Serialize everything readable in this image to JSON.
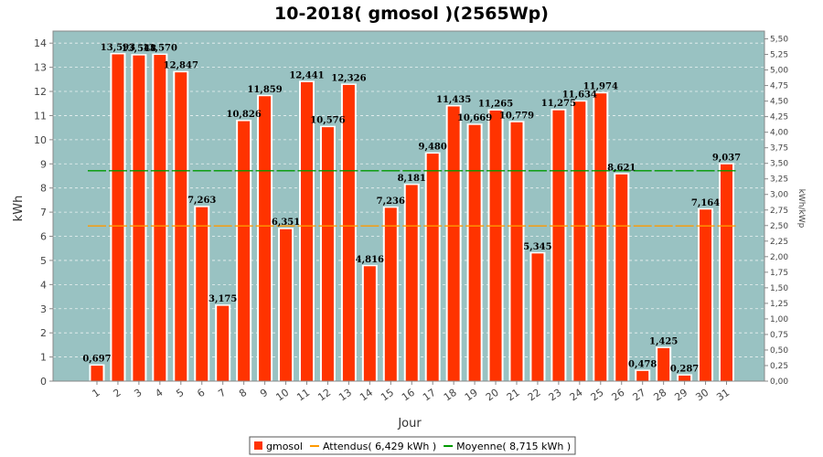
{
  "chart_data": {
    "type": "bar",
    "title": "10-2018( gmosol )(2565Wp)",
    "xlabel": "Jour",
    "ylabel": "kWh",
    "y2label": "kWh/kWp",
    "ylim": [
      0,
      14.5
    ],
    "y2lim": [
      0,
      5.625
    ],
    "yticks": [
      0,
      1,
      2,
      3,
      4,
      5,
      6,
      7,
      8,
      9,
      10,
      11,
      12,
      13,
      14
    ],
    "y2ticks": [
      "0,00",
      "0,25",
      "0,50",
      "0,75",
      "1,00",
      "1,25",
      "1,50",
      "1,75",
      "2,00",
      "2,25",
      "2,50",
      "2,75",
      "3,00",
      "3,25",
      "3,50",
      "3,75",
      "4,00",
      "4,25",
      "4,50",
      "4,75",
      "5,00",
      "5,25",
      "5,50"
    ],
    "categories": [
      "1",
      "2",
      "3",
      "4",
      "5",
      "6",
      "7",
      "8",
      "9",
      "10",
      "11",
      "12",
      "13",
      "14",
      "15",
      "16",
      "17",
      "18",
      "19",
      "20",
      "21",
      "22",
      "23",
      "24",
      "25",
      "26",
      "27",
      "28",
      "29",
      "30",
      "31"
    ],
    "values": [
      0.697,
      13.593,
      13.548,
      13.57,
      12.847,
      7.263,
      3.175,
      10.826,
      11.859,
      6.351,
      12.441,
      10.576,
      12.326,
      4.816,
      7.236,
      8.181,
      9.48,
      11.435,
      10.669,
      11.265,
      10.779,
      5.345,
      11.275,
      11.634,
      11.974,
      8.621,
      0.478,
      1.425,
      0.287,
      7.164,
      9.037
    ],
    "value_labels": [
      "0,697",
      "13,593",
      "13,548",
      "13,570",
      "12,847",
      "7,263",
      "3,175",
      "10,826",
      "11,859",
      "6,351",
      "12,441",
      "10,576",
      "12,326",
      "4,816",
      "7,236",
      "8,181",
      "9,480",
      "11,435",
      "10,669",
      "11,265",
      "10,779",
      "5,345",
      "11,275",
      "11,634",
      "11,974",
      "8,621",
      "0,478",
      "1,425",
      "0,287",
      "7,164",
      "9,037"
    ],
    "attendu": 6.429,
    "moyenne": 8.715,
    "grid": true,
    "legend_position": "bottom-center",
    "legend": [
      {
        "label": "gmosol",
        "color": "#ff3300"
      },
      {
        "label": "Attendus( 6,429 kWh )",
        "color": "#ff9900"
      },
      {
        "label": "Moyenne( 8,715 kWh )",
        "color": "#009900"
      }
    ],
    "colors": {
      "bar": "#ff3300",
      "bar_edge": "#ffffff",
      "plot_bg": "#99c2c2",
      "attendu": "#ff9900",
      "moyenne": "#009900"
    }
  }
}
